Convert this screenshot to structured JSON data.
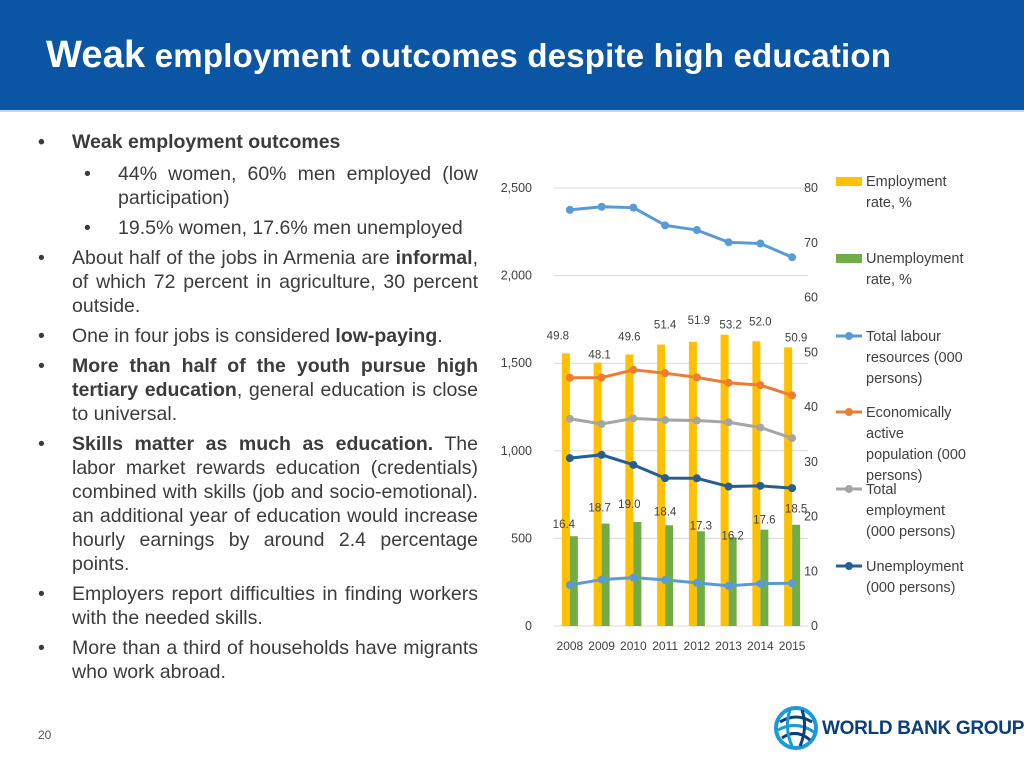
{
  "header": {
    "title_big": "Weak",
    "title_rest": " employment outcomes despite high education",
    "bg_color": "#0a56a5"
  },
  "bullets": {
    "b1_head": "Weak employment outcomes",
    "b1_sub1": "44% women, 60% men employed  (low participation)",
    "b1_sub2": "19.5% women, 17.6% men unemployed",
    "b2_pre": "About half of the jobs in Armenia are ",
    "b2_bold": "informal",
    "b2_post": ", of which 72 percent in agriculture, 30 percent outside.",
    "b3_pre": "One in four jobs is considered ",
    "b3_bold": "low-paying",
    "b3_post": ".",
    "b4_bold": "More than half of the youth pursue high tertiary education",
    "b4_post": ", general education is close to universal.",
    "b5_bold": "Skills matter as much as education.",
    "b5_post": " The labor market rewards education (credentials) combined with skills (job and socio-emotional). an additional year of education would increase hourly earnings by around 2.4 percentage points.",
    "b6": "Employers report difficulties in finding workers with the needed skills.",
    "b7": "More than a third of households have migrants who work abroad."
  },
  "page_number": "20",
  "logo": {
    "text": "WORLD BANK GROUP"
  },
  "chart_data": {
    "type": "bar",
    "categories": [
      "2008",
      "2009",
      "2010",
      "2011",
      "2012",
      "2013",
      "2014",
      "2015"
    ],
    "left_axis": {
      "min": 0,
      "max": 2500,
      "ticks": [
        "0",
        "500",
        "1,000",
        "1,500",
        "2,000",
        "2,500"
      ]
    },
    "right_axis": {
      "min": 0,
      "max": 80,
      "ticks": [
        "0",
        "10",
        "20",
        "30",
        "40",
        "50",
        "60",
        "70",
        "80"
      ]
    },
    "grid": true,
    "legend_position": "right",
    "bar_series": [
      {
        "name": "Employment rate, %",
        "color": "#ffc000",
        "axis": "right",
        "values": [
          49.8,
          48.1,
          49.6,
          51.4,
          51.9,
          53.2,
          52.0,
          50.9
        ],
        "labels": [
          "49.8",
          "48.1",
          "49.6",
          "51.4",
          "51.9",
          "53.2",
          "52.0",
          "50.9"
        ]
      },
      {
        "name": "Unemployment rate, %",
        "color": "#70ad47",
        "axis": "right",
        "values": [
          16.4,
          18.7,
          19.0,
          18.4,
          17.3,
          16.2,
          17.6,
          18.5
        ],
        "labels": [
          "16.4",
          "18.7",
          "19.0",
          "18.4",
          "17.3",
          "16.2",
          "17.6",
          "18.5"
        ]
      }
    ],
    "line_series": [
      {
        "name": "Total labour resources (000 persons)",
        "color": "#5b9bd5",
        "axis": "left",
        "values": [
          2375,
          2393,
          2388,
          2287,
          2260,
          2190,
          2183,
          2105
        ]
      },
      {
        "name": "Economically active population (000 persons)",
        "color": "#ed7d31",
        "axis": "left",
        "values": [
          1417,
          1418,
          1462,
          1443,
          1419,
          1388,
          1375,
          1316
        ]
      },
      {
        "name": "Total employment (000 persons)",
        "color": "#a5a5a5",
        "axis": "left",
        "values": [
          1183,
          1153,
          1185,
          1176,
          1173,
          1163,
          1133,
          1072
        ]
      },
      {
        "name": "Unemployment (000 persons)",
        "color": "#255e91",
        "axis": "left",
        "values": [
          958,
          977,
          920,
          844,
          843,
          796,
          800,
          787
        ]
      }
    ],
    "extra_line_series": [
      {
        "color": "#5b9bd5",
        "values": [
          234,
          265,
          276,
          263,
          246,
          229,
          242,
          244
        ]
      }
    ]
  }
}
